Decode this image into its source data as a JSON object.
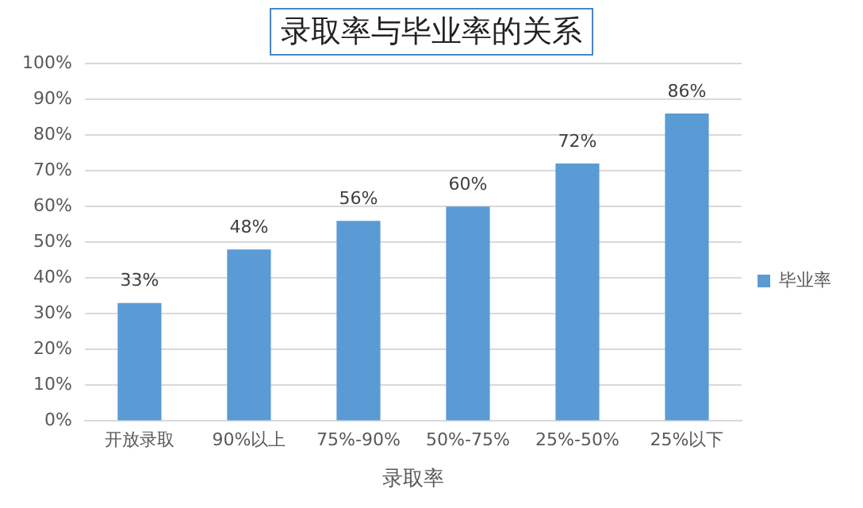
{
  "chart_data": {
    "type": "bar",
    "title": "录取率与毕业率的关系",
    "xlabel": "录取率",
    "categories": [
      "开放录取",
      "90%以上",
      "75%-90%",
      "50%-75%",
      "25%-50%",
      "25%以下"
    ],
    "series": [
      {
        "name": "毕业率",
        "color": "#5b9bd5",
        "values": [
          33,
          48,
          56,
          60,
          72,
          86
        ],
        "value_labels": [
          "33%",
          "48%",
          "56%",
          "60%",
          "72%",
          "86%"
        ]
      }
    ],
    "ylim": [
      0,
      100
    ],
    "yticks": [
      {
        "value": 0,
        "label": "0%"
      },
      {
        "value": 10,
        "label": "10%"
      },
      {
        "value": 20,
        "label": "20%"
      },
      {
        "value": 30,
        "label": "30%"
      },
      {
        "value": 40,
        "label": "40%"
      },
      {
        "value": 50,
        "label": "50%"
      },
      {
        "value": 60,
        "label": "60%"
      },
      {
        "value": 70,
        "label": "70%"
      },
      {
        "value": 80,
        "label": "80%"
      },
      {
        "value": 90,
        "label": "90%"
      },
      {
        "value": 100,
        "label": "100%"
      }
    ],
    "grid": "y",
    "legend": "right"
  }
}
